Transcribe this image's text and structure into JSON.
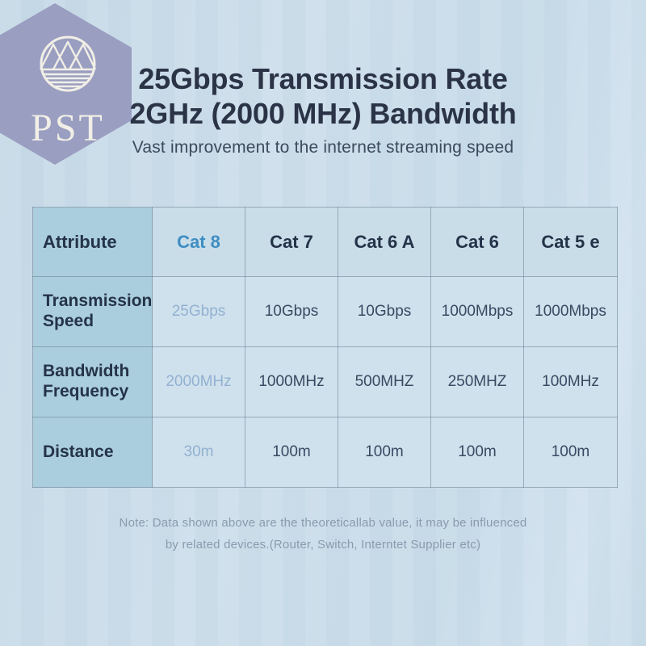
{
  "logo": {
    "text": "PST",
    "emblem": "mountains-and-water-icon"
  },
  "header": {
    "title_line1": "25Gbps Transmission Rate",
    "title_line2": "2GHz (2000 MHz) Bandwidth",
    "subtitle": "Vast improvement to the internet streaming speed"
  },
  "chart_data": {
    "type": "table",
    "title": "25Gbps Transmission Rate 2GHz (2000 MHz) Bandwidth",
    "subtitle": "Vast improvement to the internet streaming speed",
    "columns": [
      "Attribute",
      "Cat 8",
      "Cat 7",
      "Cat 6 A",
      "Cat 6",
      "Cat 5 e"
    ],
    "highlight_column": "Cat 8",
    "rows": [
      {
        "label": "Transmission Speed",
        "values": [
          "25Gbps",
          "10Gbps",
          "10Gbps",
          "1000Mbps",
          "1000Mbps"
        ]
      },
      {
        "label": "Bandwidth Frequency",
        "values": [
          "2000MHz",
          "1000MHz",
          "500MHZ",
          "250MHZ",
          "100MHz"
        ]
      },
      {
        "label": "Distance",
        "values": [
          "30m",
          "100m",
          "100m",
          "100m",
          "100m"
        ]
      }
    ]
  },
  "note": {
    "line1": "Note: Data shown above are the theoreticallab value, it may be influenced",
    "line2": "by related devices.(Router, Switch, Interntet Supplier etc)"
  },
  "colors": {
    "title_color": "#2b3447",
    "subtitle_color": "#3d4a5c",
    "dark_text": "#253349",
    "value_text": "#3a4862",
    "accent_blue": "#3e8ec2",
    "cat8_value": "#93b1d2",
    "first_col_bg": "#aacedd",
    "header_cell_bg": "#c9dde9",
    "cell_bg": "#cfe1ec",
    "table_border": "rgba(105,126,142,0.55)",
    "note_color": "#8a9bae",
    "hex_badge": "#9a9ec1",
    "logo_ink": "#f1efe6"
  }
}
